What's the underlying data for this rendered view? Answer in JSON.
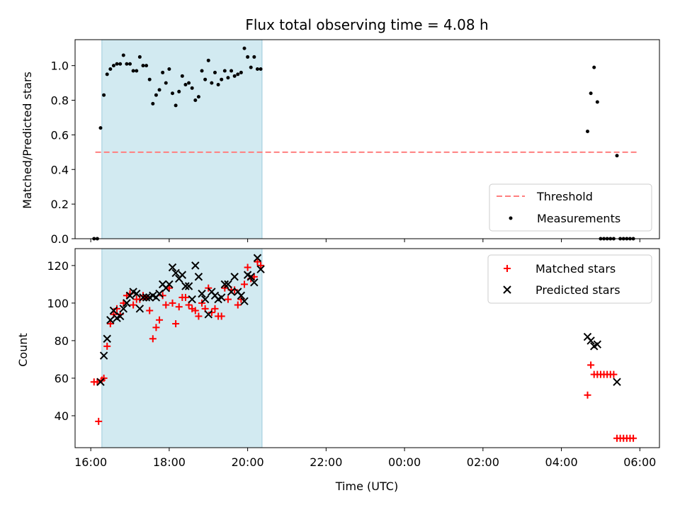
{
  "colors": {
    "shade": "#add8e6",
    "threshold": "#ff7f7f",
    "measurement": "#000000",
    "matched": "#ff0000",
    "predicted": "#000000"
  },
  "chart_data": [
    {
      "type": "scatter",
      "title": "Flux total observing time = 4.08 h",
      "xlabel": "",
      "ylabel": "Matched/Predicted stars",
      "ylim": [
        0,
        1.15
      ],
      "yticks": [
        "0.0",
        "0.2",
        "0.4",
        "0.6",
        "0.8",
        "1.0"
      ],
      "xlim_hours": [
        15.6,
        30.5
      ],
      "shaded_x_range": [
        "16:17",
        "20:22"
      ],
      "legend_position": "lower right",
      "threshold": {
        "name": "Threshold",
        "y": 0.5,
        "x_range": [
          "16:07",
          "05:56"
        ]
      },
      "series": [
        {
          "name": "Measurements",
          "points": [
            [
              "16:05",
              0.0
            ],
            [
              "16:10",
              0.0
            ],
            [
              "16:15",
              0.64
            ],
            [
              "16:20",
              0.83
            ],
            [
              "16:25",
              0.95
            ],
            [
              "16:30",
              0.98
            ],
            [
              "16:35",
              1.0
            ],
            [
              "16:40",
              1.01
            ],
            [
              "16:45",
              1.01
            ],
            [
              "16:50",
              1.06
            ],
            [
              "16:55",
              1.01
            ],
            [
              "17:00",
              1.01
            ],
            [
              "17:05",
              0.97
            ],
            [
              "17:10",
              0.97
            ],
            [
              "17:15",
              1.05
            ],
            [
              "17:20",
              1.0
            ],
            [
              "17:25",
              1.0
            ],
            [
              "17:30",
              0.92
            ],
            [
              "17:35",
              0.78
            ],
            [
              "17:40",
              0.83
            ],
            [
              "17:45",
              0.86
            ],
            [
              "17:50",
              0.96
            ],
            [
              "17:55",
              0.9
            ],
            [
              "18:00",
              0.98
            ],
            [
              "18:05",
              0.84
            ],
            [
              "18:10",
              0.77
            ],
            [
              "18:15",
              0.85
            ],
            [
              "18:20",
              0.94
            ],
            [
              "18:25",
              0.89
            ],
            [
              "18:30",
              0.9
            ],
            [
              "18:35",
              0.87
            ],
            [
              "18:40",
              0.8
            ],
            [
              "18:45",
              0.82
            ],
            [
              "18:50",
              0.97
            ],
            [
              "18:55",
              0.92
            ],
            [
              "19:00",
              1.03
            ],
            [
              "19:05",
              0.9
            ],
            [
              "19:10",
              0.96
            ],
            [
              "19:15",
              0.89
            ],
            [
              "19:20",
              0.92
            ],
            [
              "19:25",
              0.97
            ],
            [
              "19:30",
              0.93
            ],
            [
              "19:35",
              0.97
            ],
            [
              "19:40",
              0.94
            ],
            [
              "19:45",
              0.95
            ],
            [
              "19:50",
              0.96
            ],
            [
              "19:55",
              1.1
            ],
            [
              "20:00",
              1.05
            ],
            [
              "20:05",
              0.99
            ],
            [
              "20:10",
              1.05
            ],
            [
              "20:15",
              0.98
            ],
            [
              "20:20",
              0.98
            ],
            [
              "04:40",
              0.62
            ],
            [
              "04:45",
              0.84
            ],
            [
              "04:50",
              0.99
            ],
            [
              "04:55",
              0.79
            ],
            [
              "05:00",
              0.0
            ],
            [
              "05:05",
              0.0
            ],
            [
              "05:10",
              0.0
            ],
            [
              "05:15",
              0.0
            ],
            [
              "05:20",
              0.0
            ],
            [
              "05:25",
              0.48
            ],
            [
              "05:30",
              0.0
            ],
            [
              "05:35",
              0.0
            ],
            [
              "05:40",
              0.0
            ],
            [
              "05:45",
              0.0
            ],
            [
              "05:50",
              0.0
            ]
          ]
        }
      ]
    },
    {
      "type": "scatter",
      "xlabel": "Time (UTC)",
      "ylabel": "Count",
      "ylim": [
        23,
        129
      ],
      "yticks": [
        "40",
        "60",
        "80",
        "100",
        "120"
      ],
      "xticks": [
        "16:00",
        "18:00",
        "20:00",
        "22:00",
        "00:00",
        "02:00",
        "04:00",
        "06:00"
      ],
      "legend_position": "upper right",
      "series": [
        {
          "name": "Matched stars",
          "marker": "+",
          "points": [
            [
              "16:05",
              58
            ],
            [
              "16:10",
              58
            ],
            [
              "16:12",
              37
            ],
            [
              "16:17",
              59
            ],
            [
              "16:20",
              60
            ],
            [
              "16:25",
              77
            ],
            [
              "16:30",
              89
            ],
            [
              "16:35",
              94
            ],
            [
              "16:40",
              97
            ],
            [
              "16:45",
              94
            ],
            [
              "16:50",
              100
            ],
            [
              "16:55",
              104
            ],
            [
              "17:00",
              105
            ],
            [
              "17:05",
              99
            ],
            [
              "17:10",
              102
            ],
            [
              "17:15",
              102
            ],
            [
              "17:20",
              104
            ],
            [
              "17:25",
              103
            ],
            [
              "17:30",
              96
            ],
            [
              "17:35",
              81
            ],
            [
              "17:40",
              87
            ],
            [
              "17:45",
              91
            ],
            [
              "17:50",
              104
            ],
            [
              "17:55",
              99
            ],
            [
              "18:00",
              108
            ],
            [
              "18:05",
              100
            ],
            [
              "18:10",
              89
            ],
            [
              "18:15",
              98
            ],
            [
              "18:20",
              103
            ],
            [
              "18:25",
              103
            ],
            [
              "18:30",
              99
            ],
            [
              "18:35",
              97
            ],
            [
              "18:40",
              96
            ],
            [
              "18:45",
              93
            ],
            [
              "18:50",
              100
            ],
            [
              "18:55",
              97
            ],
            [
              "19:00",
              108
            ],
            [
              "19:05",
              95
            ],
            [
              "19:10",
              97
            ],
            [
              "19:15",
              93
            ],
            [
              "19:20",
              93
            ],
            [
              "19:25",
              108
            ],
            [
              "19:30",
              102
            ],
            [
              "19:35",
              107
            ],
            [
              "19:40",
              107
            ],
            [
              "19:45",
              99
            ],
            [
              "19:50",
              102
            ],
            [
              "19:55",
              110
            ],
            [
              "20:00",
              119
            ],
            [
              "20:05",
              113
            ],
            [
              "20:10",
              114
            ],
            [
              "20:15",
              122
            ],
            [
              "20:20",
              120
            ],
            [
              "04:40",
              51
            ],
            [
              "04:45",
              67
            ],
            [
              "04:50",
              62
            ],
            [
              "04:55",
              62
            ],
            [
              "05:00",
              62
            ],
            [
              "05:05",
              62
            ],
            [
              "05:10",
              62
            ],
            [
              "05:15",
              62
            ],
            [
              "05:20",
              62
            ],
            [
              "05:25",
              28
            ],
            [
              "05:30",
              28
            ],
            [
              "05:35",
              28
            ],
            [
              "05:40",
              28
            ],
            [
              "05:45",
              28
            ],
            [
              "05:50",
              28
            ]
          ]
        },
        {
          "name": "Predicted stars",
          "marker": "x",
          "points": [
            [
              "16:15",
              58
            ],
            [
              "16:20",
              72
            ],
            [
              "16:25",
              81
            ],
            [
              "16:30",
              91
            ],
            [
              "16:35",
              96
            ],
            [
              "16:40",
              92
            ],
            [
              "16:45",
              93
            ],
            [
              "16:50",
              97
            ],
            [
              "16:55",
              100
            ],
            [
              "17:00",
              104
            ],
            [
              "17:05",
              106
            ],
            [
              "17:10",
              105
            ],
            [
              "17:15",
              97
            ],
            [
              "17:20",
              103
            ],
            [
              "17:25",
              103
            ],
            [
              "17:30",
              103
            ],
            [
              "17:35",
              104
            ],
            [
              "17:40",
              103
            ],
            [
              "17:45",
              105
            ],
            [
              "17:50",
              110
            ],
            [
              "17:55",
              108
            ],
            [
              "18:00",
              110
            ],
            [
              "18:05",
              119
            ],
            [
              "18:10",
              116
            ],
            [
              "18:15",
              113
            ],
            [
              "18:20",
              115
            ],
            [
              "18:25",
              109
            ],
            [
              "18:30",
              109
            ],
            [
              "18:35",
              102
            ],
            [
              "18:40",
              120
            ],
            [
              "18:45",
              114
            ],
            [
              "18:50",
              105
            ],
            [
              "18:55",
              102
            ],
            [
              "19:00",
              94
            ],
            [
              "19:05",
              106
            ],
            [
              "19:10",
              104
            ],
            [
              "19:15",
              102
            ],
            [
              "19:20",
              103
            ],
            [
              "19:25",
              110
            ],
            [
              "19:30",
              110
            ],
            [
              "19:35",
              106
            ],
            [
              "19:40",
              114
            ],
            [
              "19:45",
              106
            ],
            [
              "19:50",
              104
            ],
            [
              "19:55",
              101
            ],
            [
              "20:00",
              115
            ],
            [
              "20:05",
              114
            ],
            [
              "20:10",
              111
            ],
            [
              "20:15",
              124
            ],
            [
              "20:20",
              118
            ],
            [
              "04:40",
              82
            ],
            [
              "04:45",
              80
            ],
            [
              "04:50",
              77
            ],
            [
              "04:55",
              78
            ],
            [
              "05:25",
              58
            ]
          ]
        }
      ]
    }
  ]
}
